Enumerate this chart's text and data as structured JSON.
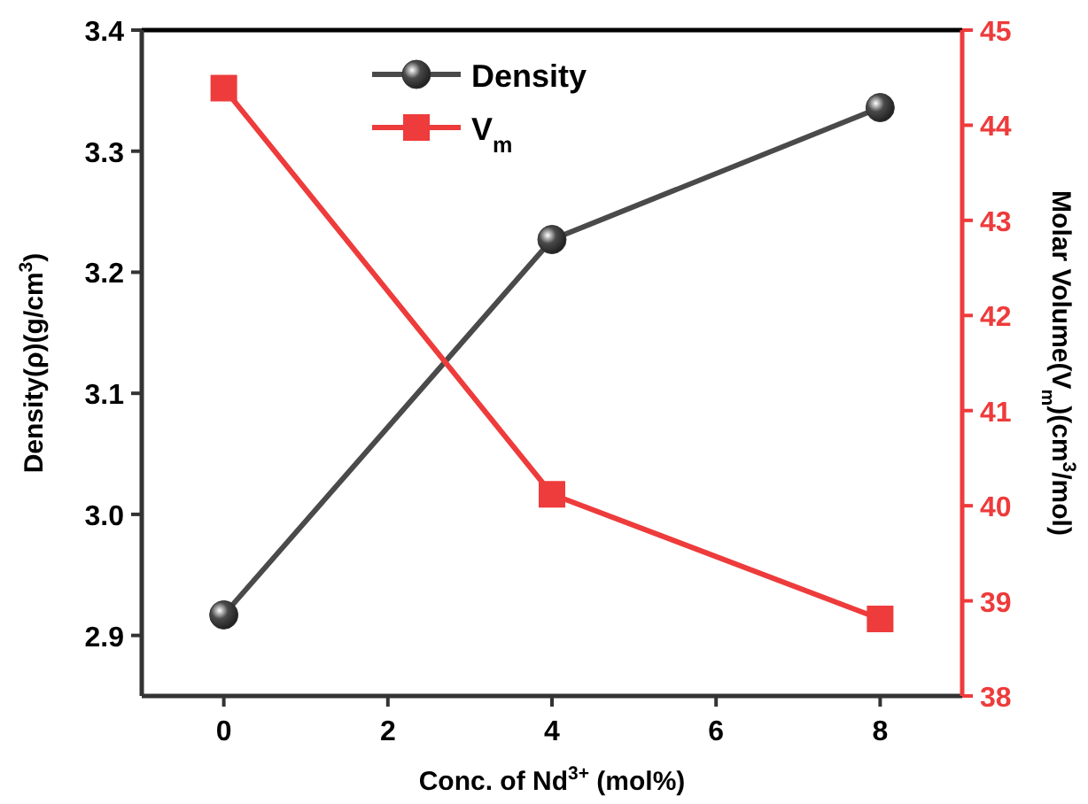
{
  "chart_data": {
    "type": "line",
    "xlabel": "Conc. of Nd$^{3+}$ (mol%)",
    "ylabel": "Density(ρ)(g/cm$^{3}$)",
    "y2label": "Molar Volume(V$_{m}$)(cm$^{3}$/mol)",
    "x": [
      0,
      4,
      8
    ],
    "series": [
      {
        "name": "Density",
        "color": "#4a4a4a",
        "values": [
          2.917,
          3.227,
          3.336
        ],
        "marker": "circle"
      },
      {
        "name": "V$_{m}$",
        "color": "#ee3b3b",
        "values": [
          44.39,
          40.12,
          38.81
        ],
        "marker": "square",
        "axis": "y2"
      }
    ],
    "xlim": [
      -1,
      9
    ],
    "xticks": [
      0,
      2,
      4,
      6,
      8
    ],
    "ylim": [
      2.85,
      3.4
    ],
    "yticks": [
      2.9,
      {
        "value": 3,
        "label": "3.0"
      },
      3.1,
      3.2,
      3.3,
      3.4
    ],
    "y2lim": [
      38,
      45
    ],
    "y2ticks": [
      38,
      39,
      40,
      41,
      42,
      43,
      44,
      45
    ],
    "grid": false,
    "legend": "top",
    "line_style": "solid"
  }
}
